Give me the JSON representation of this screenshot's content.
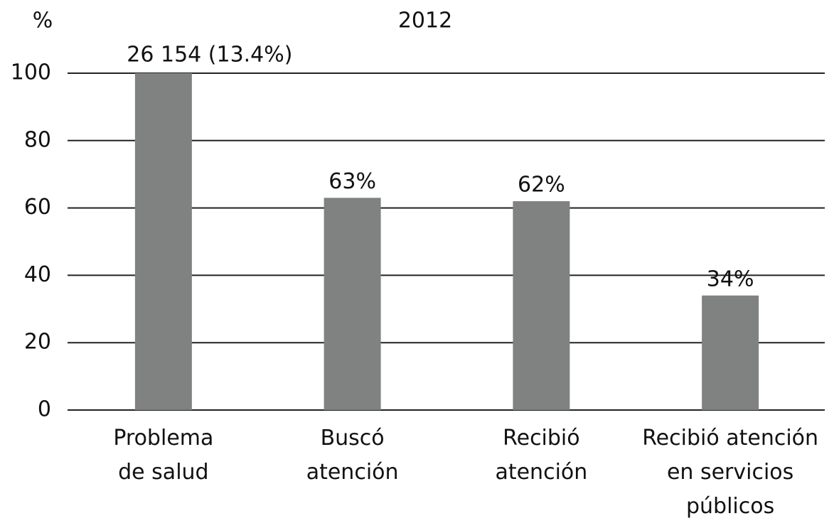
{
  "chart_data": {
    "type": "bar",
    "title": "2012",
    "y_label": "%",
    "categories": [
      [
        "Problema",
        "de salud"
      ],
      [
        "Buscó",
        "atención"
      ],
      [
        "Recibió",
        "atención"
      ],
      [
        "Recibió atención",
        "en servicios",
        "públicos"
      ]
    ],
    "values": [
      100,
      63,
      62,
      34
    ],
    "value_labels": [
      null,
      "63%",
      "62%",
      "34%"
    ],
    "annotation": "26 154 (13.4%)",
    "color": "#7f8280",
    "ylim": [
      0,
      100
    ],
    "yticks": [
      0,
      20,
      40,
      60,
      80,
      100
    ],
    "grid": true
  }
}
